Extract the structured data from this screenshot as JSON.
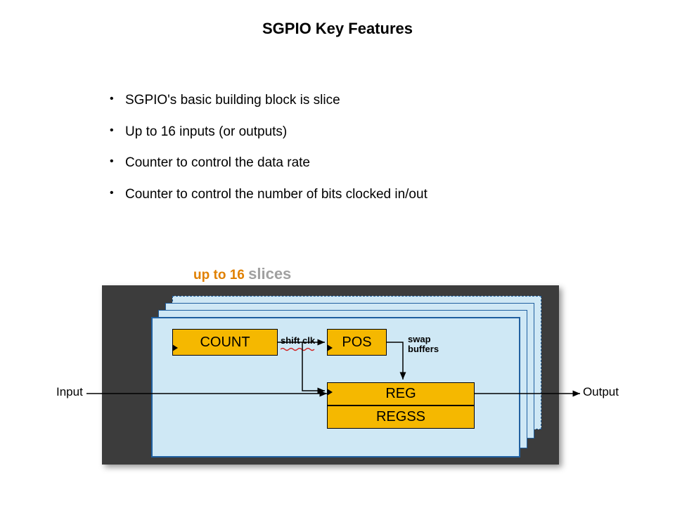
{
  "title": "SGPIO Key Features",
  "bullets": [
    "SGPIO's basic building block is slice",
    "Up to 16 inputs (or outputs)",
    "Counter to control the data rate",
    "Counter to control the number of bits clocked in/out"
  ],
  "slices_label": {
    "prefix": "up to 16",
    "word": "slices"
  },
  "io": {
    "input": "Input",
    "output": "Output"
  },
  "blocks": {
    "count": "COUNT",
    "pos": "POS",
    "reg": "REG",
    "regss": "REGSS"
  },
  "wire_labels": {
    "shift_clk": "shift clk",
    "swap_buffers": "swap\nbuffers"
  },
  "colors": {
    "chip_bg": "#3c3c3c",
    "slice_fill": "#cfe8f5",
    "slice_border": "#2060a0",
    "block_fill": "#f5b800",
    "accent_orange": "#e08000",
    "accent_grey": "#a0a0a0",
    "squiggle": "#d02020"
  },
  "style": {
    "title_fontsize": 22,
    "bullet_fontsize": 19,
    "block_fontsize": 20,
    "label_fontsize": 13,
    "chip_width": 650,
    "chip_height": 255,
    "n_slices_shown": 4
  }
}
